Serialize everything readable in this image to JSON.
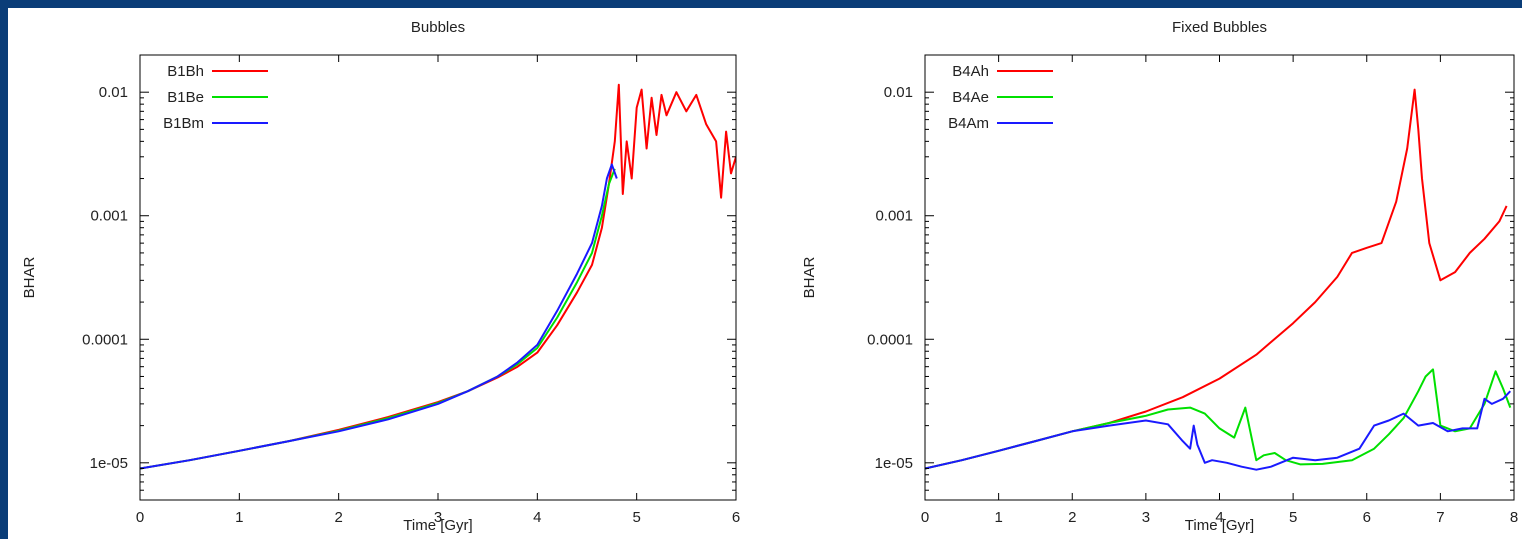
{
  "chart_data": [
    {
      "type": "line",
      "title": "Bubbles",
      "xlabel": "Time [Gyr]",
      "ylabel": "BHAR",
      "xlim": [
        0,
        6
      ],
      "ylim": [
        5e-06,
        0.02
      ],
      "yscale": "log",
      "xticks": [
        "0",
        "1",
        "2",
        "3",
        "4",
        "5",
        "6"
      ],
      "yticks": [
        {
          "value": 0.01,
          "label": "0.01"
        },
        {
          "value": 0.001,
          "label": "0.001"
        },
        {
          "value": 0.0001,
          "label": "0.0001"
        },
        {
          "value": 1e-05,
          "label": "1e-05"
        }
      ],
      "legend_position": "top-left",
      "series": [
        {
          "name": "B1Bh",
          "color": "#ff0000",
          "x": [
            0,
            0.5,
            1,
            1.5,
            2,
            2.5,
            3,
            3.3,
            3.6,
            3.8,
            4,
            4.2,
            4.4,
            4.55,
            4.65,
            4.72,
            4.78,
            4.82,
            4.86,
            4.9,
            4.95,
            5.0,
            5.05,
            5.1,
            5.15,
            5.2,
            5.25,
            5.3,
            5.4,
            5.5,
            5.6,
            5.7,
            5.8,
            5.85,
            5.9,
            5.95,
            6.0
          ],
          "y": [
            9e-06,
            1.05e-05,
            1.25e-05,
            1.5e-05,
            1.85e-05,
            2.35e-05,
            3.1e-05,
            3.8e-05,
            4.9e-05,
            6e-05,
            7.8e-05,
            0.00013,
            0.00024,
            0.0004,
            0.0008,
            0.0018,
            0.004,
            0.0115,
            0.0015,
            0.004,
            0.002,
            0.0075,
            0.0105,
            0.0035,
            0.009,
            0.0045,
            0.0095,
            0.0065,
            0.01,
            0.007,
            0.0095,
            0.0055,
            0.004,
            0.0014,
            0.0048,
            0.0022,
            0.003
          ]
        },
        {
          "name": "B1Be",
          "color": "#00e000",
          "x": [
            0,
            0.5,
            1,
            1.5,
            2,
            2.5,
            3,
            3.3,
            3.6,
            3.8,
            4,
            4.2,
            4.4,
            4.55,
            4.65,
            4.72,
            4.78
          ],
          "y": [
            9e-06,
            1.05e-05,
            1.25e-05,
            1.5e-05,
            1.82e-05,
            2.3e-05,
            3.05e-05,
            3.8e-05,
            5e-05,
            6.3e-05,
            8.5e-05,
            0.00015,
            0.00029,
            0.0005,
            0.001,
            0.0018,
            0.0024
          ]
        },
        {
          "name": "B1Bm",
          "color": "#1a1aff",
          "x": [
            0,
            0.5,
            1,
            1.5,
            2,
            2.5,
            3,
            3.3,
            3.6,
            3.8,
            4,
            4.2,
            4.4,
            4.55,
            4.65,
            4.7,
            4.75,
            4.8
          ],
          "y": [
            9e-06,
            1.05e-05,
            1.25e-05,
            1.5e-05,
            1.8e-05,
            2.25e-05,
            3e-05,
            3.8e-05,
            5e-05,
            6.5e-05,
            9e-05,
            0.00017,
            0.00034,
            0.0006,
            0.0012,
            0.002,
            0.0026,
            0.002
          ]
        }
      ]
    },
    {
      "type": "line",
      "title": "Fixed Bubbles",
      "xlabel": "Time [Gyr]",
      "ylabel": "BHAR",
      "xlim": [
        0,
        8
      ],
      "ylim": [
        5e-06,
        0.02
      ],
      "yscale": "log",
      "xticks": [
        "0",
        "1",
        "2",
        "3",
        "4",
        "5",
        "6",
        "7",
        "8"
      ],
      "yticks": [
        {
          "value": 0.01,
          "label": "0.01"
        },
        {
          "value": 0.001,
          "label": "0.001"
        },
        {
          "value": 0.0001,
          "label": "0.0001"
        },
        {
          "value": 1e-05,
          "label": "1e-05"
        }
      ],
      "legend_position": "top-left",
      "series": [
        {
          "name": "B4Ah",
          "color": "#ff0000",
          "x": [
            0,
            0.5,
            1,
            1.5,
            2,
            2.5,
            3,
            3.5,
            4,
            4.5,
            5,
            5.3,
            5.6,
            5.8,
            6.0,
            6.2,
            6.4,
            6.55,
            6.65,
            6.7,
            6.75,
            6.85,
            7.0,
            7.2,
            7.4,
            7.6,
            7.8,
            7.9
          ],
          "y": [
            9e-06,
            1.05e-05,
            1.25e-05,
            1.5e-05,
            1.8e-05,
            2.1e-05,
            2.6e-05,
            3.4e-05,
            4.8e-05,
            7.5e-05,
            0.000135,
            0.0002,
            0.00032,
            0.0005,
            0.00055,
            0.0006,
            0.0013,
            0.0035,
            0.0105,
            0.005,
            0.002,
            0.0006,
            0.0003,
            0.00035,
            0.0005,
            0.00065,
            0.0009,
            0.0012
          ]
        },
        {
          "name": "B4Ae",
          "color": "#00e000",
          "x": [
            0,
            0.5,
            1,
            1.5,
            2,
            2.5,
            3,
            3.3,
            3.6,
            3.8,
            4.0,
            4.2,
            4.35,
            4.5,
            4.6,
            4.75,
            4.9,
            5.1,
            5.4,
            5.8,
            6.1,
            6.3,
            6.5,
            6.7,
            6.8,
            6.9,
            7.0,
            7.2,
            7.4,
            7.6,
            7.75,
            7.85,
            7.95
          ],
          "y": [
            9e-06,
            1.05e-05,
            1.25e-05,
            1.5e-05,
            1.8e-05,
            2.1e-05,
            2.4e-05,
            2.7e-05,
            2.8e-05,
            2.5e-05,
            1.9e-05,
            1.6e-05,
            2.8e-05,
            1.05e-05,
            1.15e-05,
            1.2e-05,
            1.05e-05,
            9.7e-06,
            9.8e-06,
            1.05e-05,
            1.3e-05,
            1.7e-05,
            2.3e-05,
            3.8e-05,
            5e-05,
            5.7e-05,
            2e-05,
            1.8e-05,
            1.9e-05,
            3e-05,
            5.5e-05,
            4e-05,
            2.8e-05
          ]
        },
        {
          "name": "B4Am",
          "color": "#1a1aff",
          "x": [
            0,
            0.5,
            1,
            1.5,
            2,
            2.5,
            3,
            3.3,
            3.5,
            3.6,
            3.65,
            3.7,
            3.8,
            3.9,
            4.1,
            4.3,
            4.5,
            4.7,
            5.0,
            5.3,
            5.6,
            5.9,
            6.1,
            6.3,
            6.5,
            6.7,
            6.9,
            7.1,
            7.3,
            7.5,
            7.6,
            7.7,
            7.85,
            7.95
          ],
          "y": [
            9e-06,
            1.05e-05,
            1.25e-05,
            1.5e-05,
            1.8e-05,
            2e-05,
            2.2e-05,
            2.05e-05,
            1.5e-05,
            1.3e-05,
            2e-05,
            1.4e-05,
            1e-05,
            1.05e-05,
            1e-05,
            9.3e-06,
            8.8e-06,
            9.3e-06,
            1.1e-05,
            1.05e-05,
            1.1e-05,
            1.3e-05,
            2e-05,
            2.2e-05,
            2.5e-05,
            2e-05,
            2.1e-05,
            1.8e-05,
            1.9e-05,
            1.9e-05,
            3.3e-05,
            3e-05,
            3.3e-05,
            3.8e-05
          ]
        }
      ]
    }
  ]
}
